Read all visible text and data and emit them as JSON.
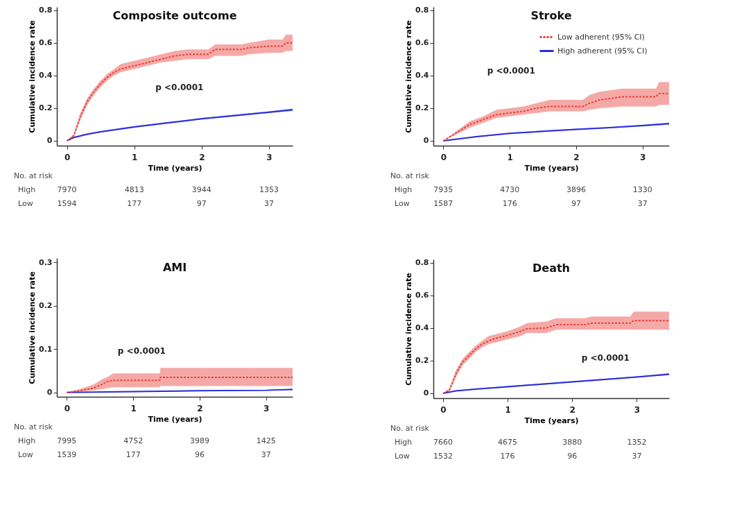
{
  "chart_data": [
    {
      "type": "line",
      "title": "Composite outcome",
      "xlabel": "Time (years)",
      "ylabel": "Cumulative incidence rate",
      "xlim": [
        -0.15,
        3.35
      ],
      "ylim": [
        -0.03,
        0.82
      ],
      "xticks": [
        0,
        1,
        2,
        3
      ],
      "yticks": [
        0,
        0.2,
        0.4,
        0.6,
        0.8
      ],
      "grid": false,
      "legend": false,
      "annotations": [
        "p <0.0001",
        "No. at risk",
        "High",
        "7970",
        "4813",
        "3944",
        "1353",
        "Low",
        "1594",
        "177",
        "97",
        "37"
      ],
      "series": [
        {
          "color": "#e8413c",
          "line_style": "dashed",
          "x": [
            0,
            0.1,
            0.2,
            0.3,
            0.4,
            0.5,
            0.6,
            0.7,
            0.8,
            1.0,
            1.2,
            1.4,
            1.6,
            1.8,
            2.1,
            2.2,
            2.6,
            2.7,
            3.0,
            3.2,
            3.25,
            3.35
          ],
          "values": [
            0,
            0.03,
            0.15,
            0.24,
            0.3,
            0.35,
            0.39,
            0.42,
            0.44,
            0.46,
            0.48,
            0.5,
            0.52,
            0.53,
            0.53,
            0.56,
            0.56,
            0.57,
            0.58,
            0.58,
            0.6,
            0.6
          ],
          "lower": [
            0,
            0.02,
            0.13,
            0.22,
            0.28,
            0.33,
            0.37,
            0.4,
            0.42,
            0.44,
            0.46,
            0.48,
            0.49,
            0.5,
            0.5,
            0.52,
            0.52,
            0.53,
            0.54,
            0.54,
            0.55,
            0.55
          ],
          "upper": [
            0,
            0.04,
            0.17,
            0.26,
            0.32,
            0.37,
            0.41,
            0.44,
            0.47,
            0.49,
            0.51,
            0.53,
            0.55,
            0.56,
            0.56,
            0.59,
            0.59,
            0.6,
            0.62,
            0.62,
            0.65,
            0.65
          ]
        },
        {
          "color": "#2b2bdb",
          "line_style": "solid",
          "x": [
            0,
            0.1,
            0.3,
            0.5,
            1.0,
            1.5,
            2.0,
            2.5,
            3.0,
            3.35
          ],
          "values": [
            0,
            0.02,
            0.04,
            0.055,
            0.085,
            0.11,
            0.135,
            0.155,
            0.175,
            0.19
          ],
          "lower": [
            0,
            0.017,
            0.036,
            0.051,
            0.08,
            0.105,
            0.13,
            0.15,
            0.17,
            0.183
          ],
          "upper": [
            0,
            0.023,
            0.044,
            0.059,
            0.09,
            0.115,
            0.14,
            0.16,
            0.18,
            0.197
          ]
        }
      ]
    },
    {
      "type": "line",
      "title": "Stroke",
      "xlabel": "Time (years)",
      "ylabel": "Cumulative incidence rate",
      "xlim": [
        -0.15,
        3.4
      ],
      "ylim": [
        -0.03,
        0.82
      ],
      "xticks": [
        0,
        1,
        2,
        3
      ],
      "yticks": [
        0,
        0.2,
        0.4,
        0.6,
        0.8
      ],
      "grid": false,
      "legend": "top right",
      "annotations": [
        "p <0.0001",
        "No. at risk",
        "High",
        "7935",
        "4730",
        "3896",
        "1330",
        "Low",
        "1587",
        "176",
        "97",
        "37"
      ],
      "series": [
        {
          "name": "Low adherent (95% CI)",
          "color": "#e8413c",
          "line_style": "dashed",
          "x": [
            0,
            0.2,
            0.4,
            0.6,
            0.8,
            1.0,
            1.2,
            1.4,
            1.6,
            2.1,
            2.2,
            2.35,
            2.7,
            3.2,
            3.25,
            3.4
          ],
          "values": [
            0,
            0.05,
            0.1,
            0.13,
            0.16,
            0.17,
            0.18,
            0.2,
            0.21,
            0.21,
            0.23,
            0.25,
            0.27,
            0.27,
            0.29,
            0.29
          ],
          "lower": [
            0,
            0.04,
            0.08,
            0.11,
            0.14,
            0.15,
            0.16,
            0.17,
            0.18,
            0.18,
            0.19,
            0.2,
            0.21,
            0.21,
            0.22,
            0.22
          ],
          "upper": [
            0,
            0.06,
            0.12,
            0.15,
            0.19,
            0.2,
            0.21,
            0.23,
            0.25,
            0.25,
            0.28,
            0.3,
            0.32,
            0.32,
            0.36,
            0.36
          ]
        },
        {
          "name": "High adherent (95% CI)",
          "color": "#2b2bdb",
          "line_style": "solid",
          "x": [
            0,
            0.5,
            1.0,
            1.5,
            2.0,
            2.5,
            3.0,
            3.4
          ],
          "values": [
            0,
            0.025,
            0.045,
            0.058,
            0.07,
            0.08,
            0.093,
            0.105
          ],
          "lower": [
            0,
            0.022,
            0.041,
            0.054,
            0.066,
            0.076,
            0.088,
            0.099
          ],
          "upper": [
            0,
            0.028,
            0.049,
            0.062,
            0.074,
            0.084,
            0.098,
            0.111
          ]
        }
      ]
    },
    {
      "type": "line",
      "title": "AMI",
      "xlabel": "Time (years)",
      "ylabel": "Cumulative incidence rate",
      "xlim": [
        -0.15,
        3.4
      ],
      "ylim": [
        -0.01,
        0.31
      ],
      "xticks": [
        0,
        1,
        2,
        3
      ],
      "yticks": [
        0,
        0.1,
        0.2,
        0.3
      ],
      "grid": false,
      "legend": false,
      "annotations": [
        "p <0.0001",
        "No. at risk",
        "High",
        "7995",
        "4752",
        "3989",
        "1425",
        "Low",
        "1539",
        "177",
        "96",
        "37"
      ],
      "series": [
        {
          "color": "#e8413c",
          "line_style": "dashed",
          "x": [
            0,
            0.2,
            0.4,
            0.55,
            0.6,
            0.7,
            1.4,
            1.41,
            3.4
          ],
          "values": [
            0,
            0.004,
            0.01,
            0.02,
            0.025,
            0.028,
            0.028,
            0.035,
            0.035
          ],
          "lower": [
            0,
            0.002,
            0.005,
            0.008,
            0.01,
            0.012,
            0.012,
            0.015,
            0.015
          ],
          "upper": [
            0,
            0.008,
            0.018,
            0.032,
            0.035,
            0.044,
            0.044,
            0.057,
            0.057
          ]
        },
        {
          "color": "#2b2bdb",
          "line_style": "solid",
          "x": [
            0,
            1.0,
            2.0,
            3.0,
            3.4
          ],
          "values": [
            0,
            0.002,
            0.004,
            0.005,
            0.007
          ],
          "lower": [
            0,
            0.001,
            0.003,
            0.004,
            0.005
          ],
          "upper": [
            0,
            0.003,
            0.005,
            0.006,
            0.009
          ]
        }
      ]
    },
    {
      "type": "line",
      "title": "Death",
      "xlabel": "Time (years)",
      "ylabel": "Cumulative incidence rate",
      "xlim": [
        -0.15,
        3.5
      ],
      "ylim": [
        -0.03,
        0.82
      ],
      "xticks": [
        0,
        1,
        2,
        3
      ],
      "yticks": [
        0,
        0.2,
        0.4,
        0.6,
        0.8
      ],
      "grid": false,
      "legend": false,
      "annotations": [
        "p <0.0001",
        "No. at risk",
        "High",
        "7660",
        "4675",
        "3880",
        "1352",
        "Low",
        "1532",
        "176",
        "96",
        "37"
      ],
      "series": [
        {
          "color": "#e8413c",
          "line_style": "dashed",
          "x": [
            0,
            0.1,
            0.2,
            0.3,
            0.4,
            0.5,
            0.6,
            0.7,
            0.8,
            1.0,
            1.2,
            1.3,
            1.6,
            1.75,
            2.2,
            2.3,
            2.9,
            2.95,
            3.5
          ],
          "values": [
            0,
            0.02,
            0.12,
            0.19,
            0.23,
            0.27,
            0.3,
            0.32,
            0.335,
            0.355,
            0.38,
            0.395,
            0.4,
            0.42,
            0.42,
            0.43,
            0.43,
            0.445,
            0.445
          ],
          "lower": [
            0,
            0.01,
            0.1,
            0.17,
            0.21,
            0.25,
            0.28,
            0.3,
            0.31,
            0.33,
            0.35,
            0.37,
            0.37,
            0.39,
            0.39,
            0.39,
            0.39,
            0.39,
            0.39
          ],
          "upper": [
            0,
            0.03,
            0.14,
            0.21,
            0.25,
            0.29,
            0.32,
            0.35,
            0.36,
            0.38,
            0.41,
            0.43,
            0.44,
            0.46,
            0.46,
            0.47,
            0.47,
            0.5,
            0.5
          ]
        },
        {
          "color": "#2b2bdb",
          "line_style": "solid",
          "x": [
            0,
            0.2,
            0.5,
            1.0,
            1.5,
            2.0,
            2.5,
            3.0,
            3.5
          ],
          "values": [
            0,
            0.015,
            0.025,
            0.04,
            0.055,
            0.07,
            0.085,
            0.1,
            0.117
          ],
          "lower": [
            0,
            0.012,
            0.022,
            0.036,
            0.051,
            0.066,
            0.081,
            0.096,
            0.111
          ],
          "upper": [
            0,
            0.018,
            0.028,
            0.044,
            0.059,
            0.074,
            0.089,
            0.104,
            0.123
          ]
        }
      ]
    }
  ]
}
